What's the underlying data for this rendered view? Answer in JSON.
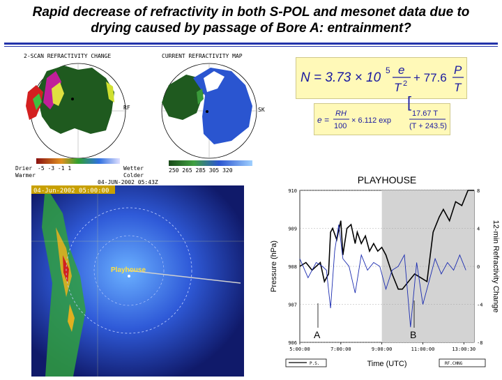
{
  "title_line1": "Rapid decrease of refractivity in both S-POL and mesonet data due to",
  "title_line2": "drying caused by passage of Bore A: entrainment?",
  "radar_left": {
    "title": "2-SCAN REFRACTIVITY CHANGE",
    "label_right": "RF",
    "legend_drier": "Drier",
    "legend_warmer": "Warmer",
    "legend_wetter": "Wetter",
    "legend_colder": "Colder",
    "ticks": "-5   -3   -1   1"
  },
  "radar_right": {
    "title": "CURRENT REFRACTIVITY MAP",
    "label_right": "SK",
    "ticks": "250 265  285  305 320",
    "timestamp": "04-JUN-2002 05:43Z"
  },
  "radar_bottom": {
    "timestamp": "04-Jun-2002 05:00:00",
    "label": "Playhouse"
  },
  "formula1": {
    "lhs": "N = 3.73 × 10",
    "exp": "5",
    "num1": "e",
    "den1": "T",
    "den1exp": "2",
    "plus": "+ 77.6",
    "num2": "P",
    "den2": "T"
  },
  "formula2": {
    "lhs": "e =",
    "rh": "RH",
    "hundred": "100",
    "mult": "× 6.112 exp",
    "num": "17.67 T",
    "den": "(T + 243.5)"
  },
  "chart_data": {
    "type": "line",
    "title": "PLAYHOUSE",
    "xlabel": "Time (UTC)",
    "ylabel": "Pressure (hPa)",
    "y2label": "12-min Refractivity Change",
    "x_ticks": [
      "5:00:00",
      "7:00:00",
      "9:00:00",
      "11:00:00",
      "13:00:30"
    ],
    "y_ticks": [
      "910",
      "909",
      "908",
      "907",
      "906"
    ],
    "y2_ticks": [
      "8",
      "4",
      "0",
      "-4",
      "-8"
    ],
    "annotations": [
      "A",
      "B"
    ],
    "legend_left": "P.S.",
    "legend_right": "RF.CHNG",
    "shaded_x_range": [
      9,
      13.5
    ],
    "xlim": [
      5,
      13.5
    ],
    "ylim": [
      906,
      910
    ],
    "y2lim": [
      -8,
      8
    ],
    "series": [
      {
        "color": "#000000",
        "x": [
          5.0,
          5.3,
          5.6,
          6.0,
          6.2,
          6.4,
          6.5,
          6.6,
          6.8,
          7.0,
          7.1,
          7.3,
          7.5,
          7.7,
          7.8,
          8.0,
          8.2,
          8.4,
          8.6,
          8.8,
          9.0,
          9.2,
          9.5,
          9.8,
          10.0,
          10.3,
          10.6,
          10.9,
          11.2,
          11.5,
          11.8,
          12.0,
          12.3,
          12.6,
          12.9,
          13.2,
          13.5
        ],
        "y": [
          908.0,
          908.1,
          907.9,
          908.1,
          907.6,
          907.8,
          908.9,
          909.0,
          908.7,
          909.2,
          908.3,
          909.0,
          909.1,
          908.6,
          908.9,
          908.6,
          908.8,
          908.4,
          908.6,
          908.4,
          908.5,
          908.3,
          907.8,
          907.4,
          907.4,
          907.6,
          907.8,
          907.7,
          907.6,
          908.9,
          909.3,
          909.5,
          909.2,
          909.7,
          909.6,
          910.0,
          910.0
        ]
      },
      {
        "color": "#1a2bb0",
        "x": [
          5.0,
          5.4,
          5.8,
          6.1,
          6.3,
          6.5,
          6.7,
          6.9,
          7.1,
          7.4,
          7.7,
          8.0,
          8.3,
          8.6,
          8.9,
          9.2,
          9.5,
          9.8,
          10.1,
          10.4,
          10.7,
          11.0,
          11.3,
          11.6,
          11.9,
          12.2,
          12.5,
          12.8,
          13.1
        ],
        "y": [
          908.2,
          907.7,
          908.1,
          908.0,
          907.9,
          906.9,
          908.4,
          909.1,
          908.2,
          908.0,
          907.3,
          908.3,
          907.9,
          908.1,
          908.0,
          907.4,
          907.9,
          908.0,
          908.3,
          906.4,
          908.1,
          907.0,
          907.6,
          908.2,
          907.8,
          908.1,
          907.9,
          908.3,
          907.9
        ]
      }
    ]
  }
}
